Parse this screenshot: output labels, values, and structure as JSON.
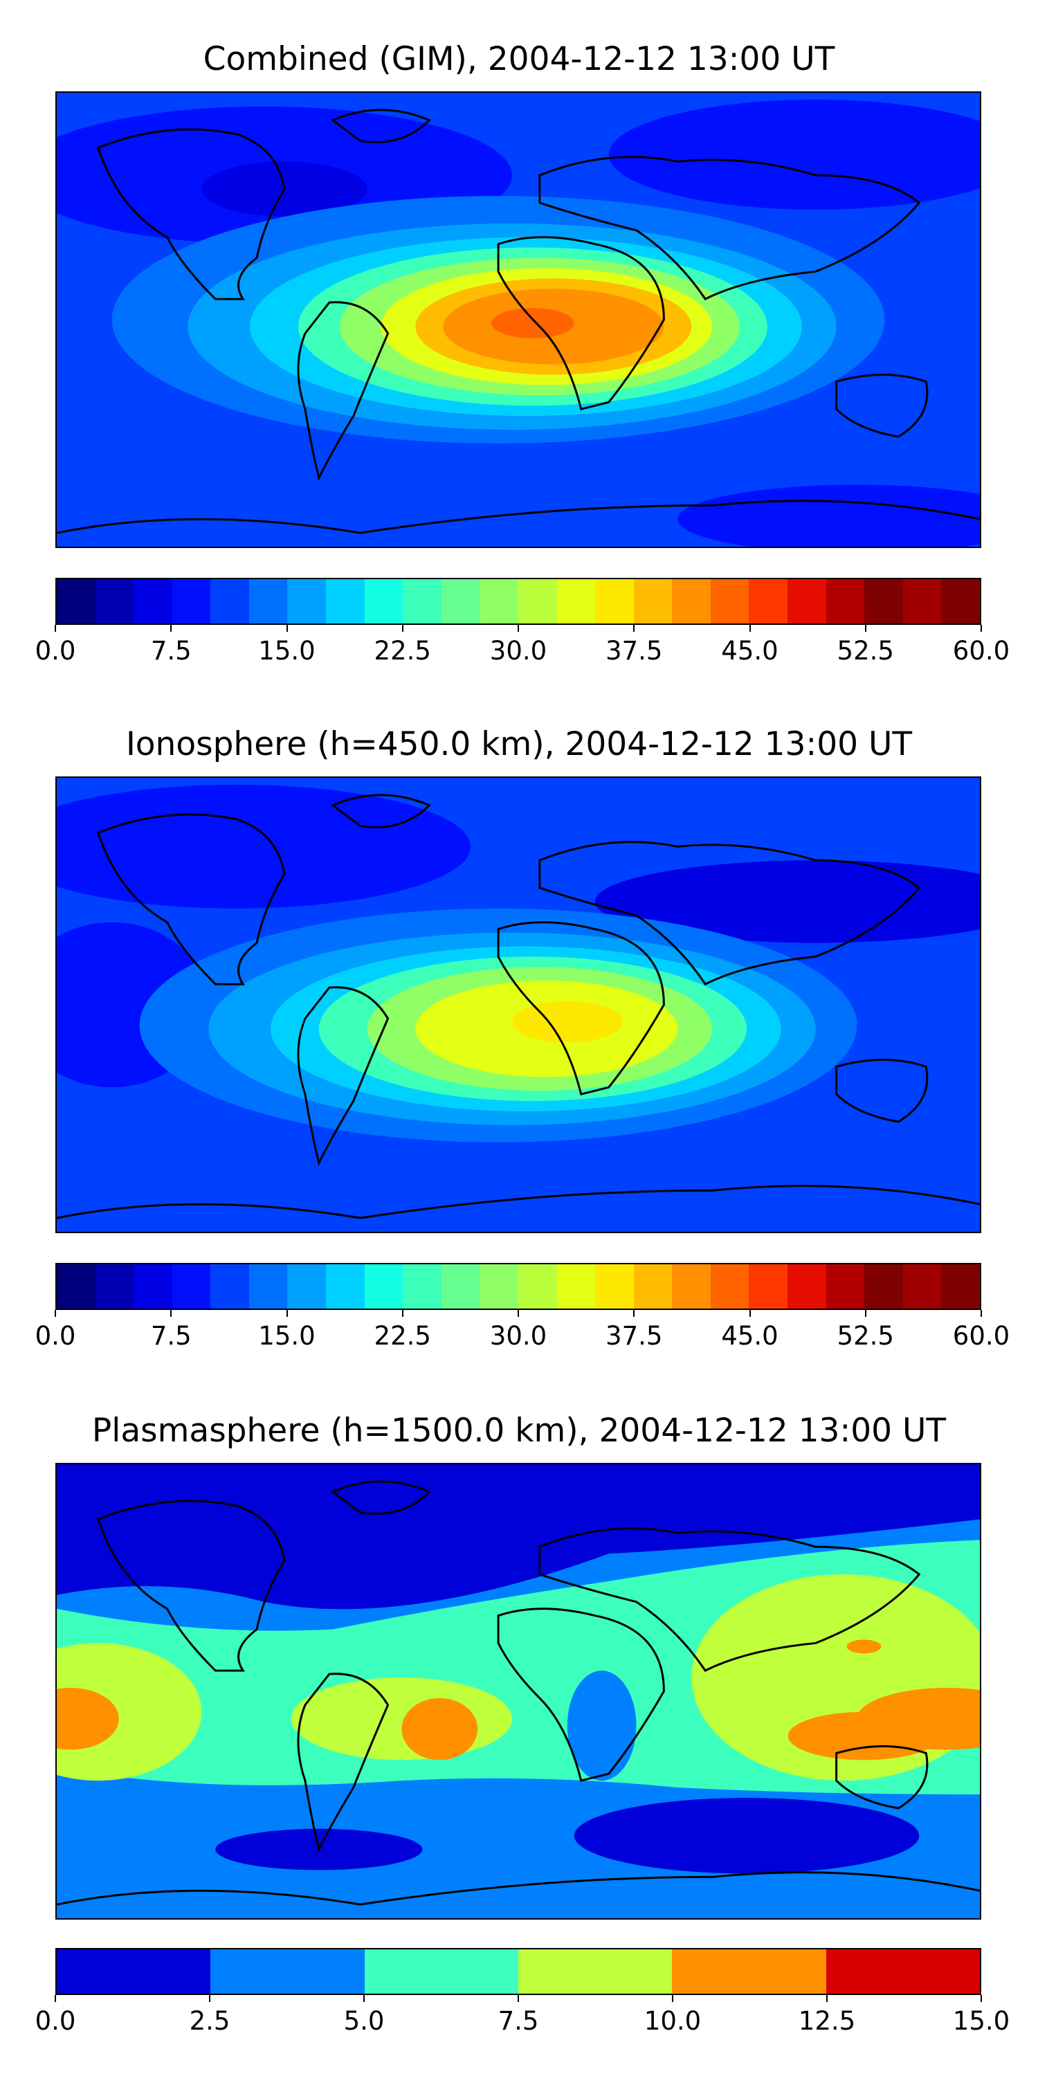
{
  "chart_data": [
    {
      "type": "heatmap",
      "title": "Combined (GIM), 2004-12-12 13:00 UT",
      "colorbar": {
        "levels": [
          0.0,
          2.5,
          5.0,
          7.5,
          10.0,
          12.5,
          15.0,
          17.5,
          20.0,
          22.5,
          25.0,
          27.5,
          30.0,
          32.5,
          35.0,
          37.5,
          40.0,
          42.5,
          45.0,
          47.5,
          50.0,
          52.5,
          55.0,
          57.5,
          60.0
        ],
        "colors": [
          "#00007f",
          "#0000b2",
          "#0000e5",
          "#0010ff",
          "#0040ff",
          "#0070ff",
          "#00a0ff",
          "#00d0ff",
          "#13ffe3",
          "#3cffba",
          "#66ff90",
          "#90ff66",
          "#baff3c",
          "#e3ff13",
          "#ffe800",
          "#ffbc00",
          "#ff9000",
          "#ff6400",
          "#ff3800",
          "#e50c00",
          "#b20000",
          "#7f0000",
          "#a00000",
          "#7f0000"
        ],
        "tick_labels": [
          "0.0",
          "7.5",
          "15.0",
          "22.5",
          "30.0",
          "37.5",
          "45.0",
          "52.5",
          "60.0"
        ],
        "tick_values": [
          0,
          7.5,
          15,
          22.5,
          30,
          37.5,
          45,
          52.5,
          60
        ],
        "range": [
          0,
          60
        ]
      },
      "features": {
        "peak_level": 45.0,
        "peak_region": "equatorial Africa"
      }
    },
    {
      "type": "heatmap",
      "title": "Ionosphere  (h=450.0 km), 2004-12-12 13:00 UT",
      "colorbar": {
        "levels": [
          0.0,
          2.5,
          5.0,
          7.5,
          10.0,
          12.5,
          15.0,
          17.5,
          20.0,
          22.5,
          25.0,
          27.5,
          30.0,
          32.5,
          35.0,
          37.5,
          40.0,
          42.5,
          45.0,
          47.5,
          50.0,
          52.5,
          55.0,
          57.5,
          60.0
        ],
        "colors": [
          "#00007f",
          "#0000b2",
          "#0000e5",
          "#0010ff",
          "#0040ff",
          "#0070ff",
          "#00a0ff",
          "#00d0ff",
          "#13ffe3",
          "#3cffba",
          "#66ff90",
          "#90ff66",
          "#baff3c",
          "#e3ff13",
          "#ffe800",
          "#ffbc00",
          "#ff9000",
          "#ff6400",
          "#ff3800",
          "#e50c00",
          "#b20000",
          "#7f0000",
          "#a00000",
          "#7f0000"
        ],
        "tick_labels": [
          "0.0",
          "7.5",
          "15.0",
          "22.5",
          "30.0",
          "37.5",
          "45.0",
          "52.5",
          "60.0"
        ],
        "tick_values": [
          0,
          7.5,
          15,
          22.5,
          30,
          37.5,
          45,
          52.5,
          60
        ],
        "range": [
          0,
          60
        ]
      },
      "features": {
        "peak_level": 37.5,
        "peak_region": "equatorial Africa"
      }
    },
    {
      "type": "heatmap",
      "title": "Plasmasphere (h=1500.0 km), 2004-12-12 13:00 UT",
      "colorbar": {
        "levels": [
          0.0,
          2.5,
          5.0,
          7.5,
          10.0,
          12.5,
          15.0
        ],
        "colors": [
          "#0000d8",
          "#0080ff",
          "#3cffbe",
          "#c0ff3c",
          "#ff9000",
          "#d80000"
        ],
        "tick_labels": [
          "0.0",
          "2.5",
          "5.0",
          "7.5",
          "10.0",
          "12.5",
          "15.0"
        ],
        "tick_values": [
          0,
          2.5,
          5,
          7.5,
          10,
          12.5,
          15
        ],
        "range": [
          0,
          15
        ]
      },
      "features": {
        "peak_level": 10.0,
        "peak_region": "Australia / western Pacific"
      }
    }
  ]
}
